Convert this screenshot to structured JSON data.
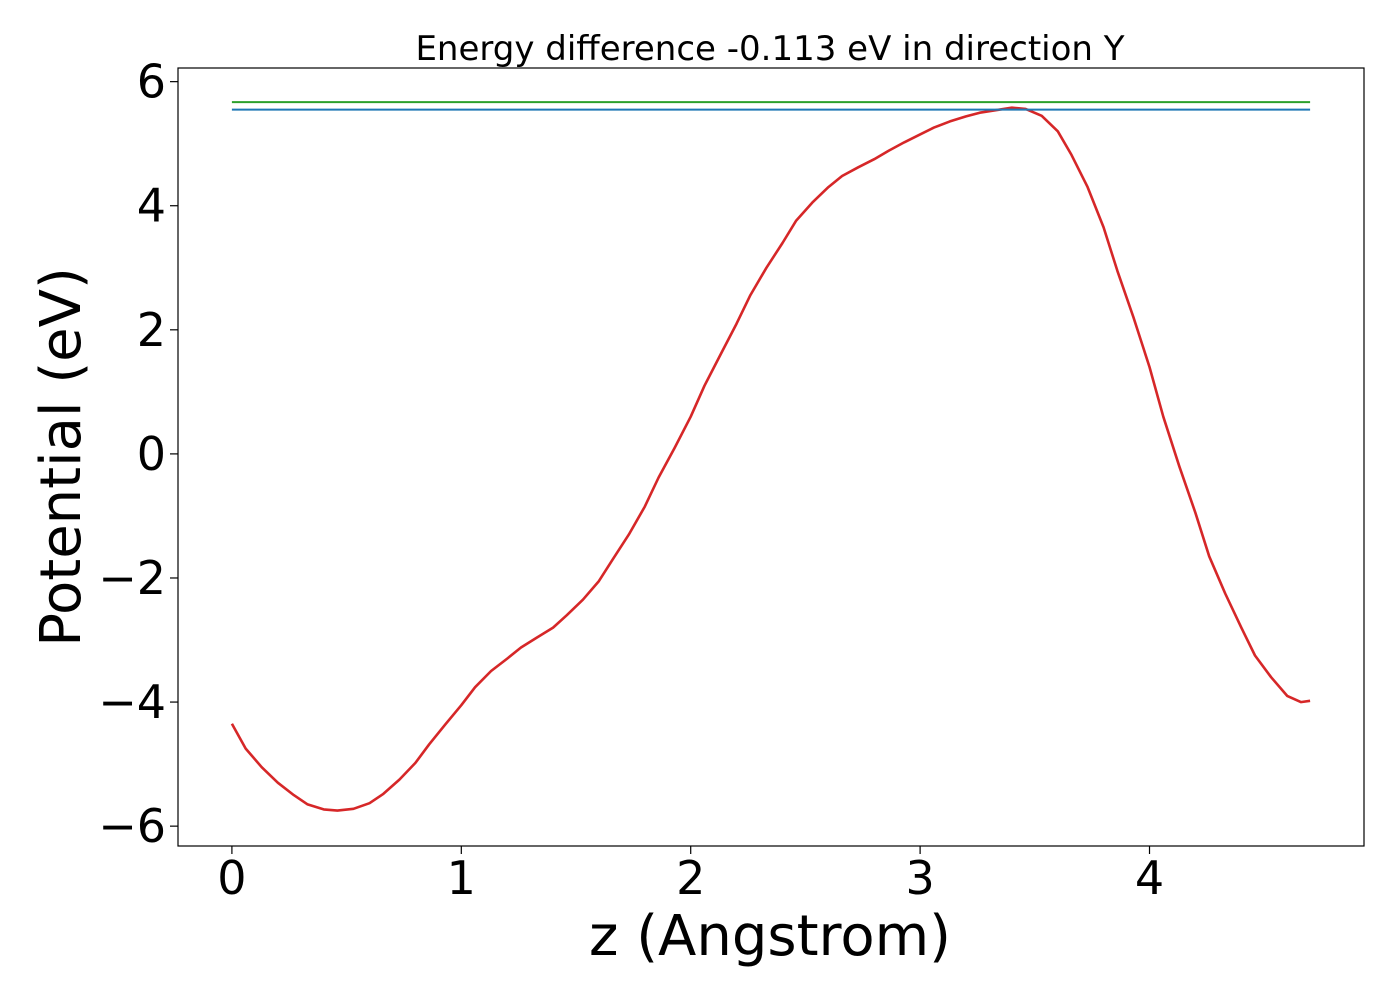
{
  "chart_data": {
    "type": "line",
    "title": "Energy difference -0.113 eV in direction Y",
    "xlabel": "z (Angstrom)",
    "ylabel": "Potential (eV)",
    "xlim": [
      -0.235,
      4.935
    ],
    "ylim": [
      -6.32,
      6.22
    ],
    "x_ticks": [
      0,
      1,
      2,
      3,
      4
    ],
    "y_ticks": [
      -6,
      -4,
      -2,
      0,
      2,
      4,
      6
    ],
    "y_tick_labels": [
      "−6",
      "−4",
      "−2",
      "0",
      "2",
      "4",
      "6"
    ],
    "x_tick_labels": [
      "0",
      "1",
      "2",
      "3",
      "4"
    ],
    "grid": false,
    "legend": "none",
    "series": [
      {
        "color": "#d62728",
        "x": [
          0.0,
          0.06,
          0.13,
          0.2,
          0.27,
          0.33,
          0.4,
          0.46,
          0.53,
          0.6,
          0.66,
          0.73,
          0.8,
          0.86,
          0.93,
          1.0,
          1.06,
          1.13,
          1.2,
          1.26,
          1.33,
          1.4,
          1.46,
          1.53,
          1.6,
          1.66,
          1.73,
          1.8,
          1.86,
          1.93,
          2.0,
          2.06,
          2.13,
          2.2,
          2.26,
          2.33,
          2.4,
          2.46,
          2.53,
          2.6,
          2.66,
          2.73,
          2.8,
          2.86,
          2.93,
          3.0,
          3.06,
          3.13,
          3.2,
          3.26,
          3.33,
          3.4,
          3.46,
          3.53,
          3.6,
          3.66,
          3.73,
          3.8,
          3.86,
          3.93,
          4.0,
          4.06,
          4.13,
          4.2,
          4.26,
          4.33,
          4.4,
          4.46,
          4.53,
          4.6,
          4.66,
          4.7
        ],
        "y": [
          -4.35,
          -4.75,
          -5.05,
          -5.3,
          -5.5,
          -5.65,
          -5.73,
          -5.75,
          -5.72,
          -5.63,
          -5.48,
          -5.25,
          -4.98,
          -4.68,
          -4.36,
          -4.05,
          -3.76,
          -3.5,
          -3.3,
          -3.12,
          -2.96,
          -2.8,
          -2.6,
          -2.35,
          -2.05,
          -1.7,
          -1.3,
          -0.85,
          -0.38,
          0.1,
          0.6,
          1.1,
          1.6,
          2.1,
          2.56,
          3.0,
          3.4,
          3.76,
          4.05,
          4.3,
          4.48,
          4.62,
          4.75,
          4.88,
          5.02,
          5.15,
          5.26,
          5.36,
          5.44,
          5.5,
          5.54,
          5.58,
          5.56,
          5.45,
          5.2,
          4.82,
          4.3,
          3.65,
          2.95,
          2.2,
          1.4,
          0.6,
          -0.2,
          -0.95,
          -1.65,
          -2.25,
          -2.8,
          -3.25,
          -3.6,
          -3.9,
          -4.0,
          -3.98
        ]
      },
      {
        "color": "#2ca02c",
        "x": [
          0.0,
          4.7
        ],
        "y": [
          5.67,
          5.67
        ]
      },
      {
        "color": "#1f77b4",
        "x": [
          0.0,
          4.7
        ],
        "y": [
          5.55,
          5.55
        ]
      }
    ]
  }
}
